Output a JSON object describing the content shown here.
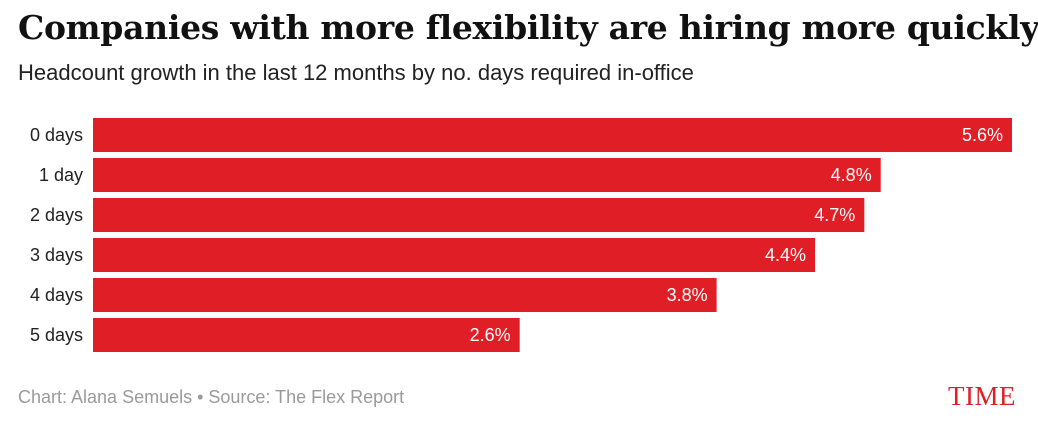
{
  "header": {
    "title": "Companies with more flexibility are hiring more quickly",
    "subtitle": "Headcount growth in the last 12 months by no. days required in-office"
  },
  "footer": {
    "credit": "Chart: Alana Semuels • Source: The Flex Report",
    "logo": "TIME"
  },
  "colors": {
    "bar": "#e01e26",
    "bar_label": "#ffffff",
    "category_label": "#222222",
    "logo": "#e01e26"
  },
  "chart_data": {
    "type": "bar",
    "orientation": "horizontal",
    "title": "Companies with more flexibility are hiring more quickly",
    "subtitle": "Headcount growth in the last 12 months by no. days required in-office",
    "categories": [
      "0 days",
      "1 day",
      "2 days",
      "3 days",
      "4 days",
      "5 days"
    ],
    "values": [
      5.6,
      4.8,
      4.7,
      4.4,
      3.8,
      2.6
    ],
    "value_labels": [
      "5.6%",
      "4.8%",
      "4.7%",
      "4.4%",
      "3.8%",
      "2.6%"
    ],
    "unit": "%",
    "xlim": [
      0,
      5.6
    ],
    "grid": false,
    "legend": "none"
  }
}
